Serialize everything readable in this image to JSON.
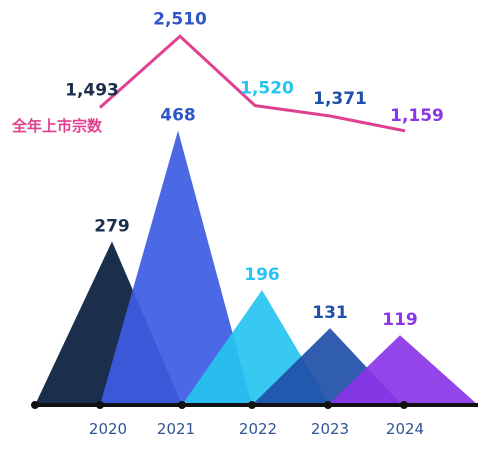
{
  "chart_data": [
    {
      "type": "area",
      "categories": [
        "2020",
        "2021",
        "2022",
        "2023",
        "2024"
      ],
      "values": [
        279,
        468,
        196,
        131,
        119
      ],
      "colors": [
        "#1b2f4c",
        "#3d5ce3",
        "#26c4f0",
        "#1f4fa8",
        "#8a35e8"
      ],
      "label_colors": [
        "#1b2f4c",
        "#2f56c9",
        "#26c4f0",
        "#1f4fa8",
        "#8a35e8"
      ],
      "ylim": [
        0,
        520
      ]
    },
    {
      "type": "line",
      "categories": [
        "2020",
        "2021",
        "2022",
        "2023",
        "2024"
      ],
      "series": [
        {
          "name": "全年上市宗数",
          "values": [
            1493,
            2510,
            1520,
            1371,
            1159
          ],
          "labels": [
            "1,493",
            "2,510",
            "1,520",
            "1,371",
            "1,159"
          ]
        }
      ],
      "line_color": "#e0408f",
      "label_colors": [
        "#1b2f4c",
        "#2f56c9",
        "#26c4f0",
        "#1f4fa8",
        "#8a35e8"
      ],
      "ylim": [
        1000,
        2600
      ]
    }
  ],
  "axis_color": "#111111"
}
